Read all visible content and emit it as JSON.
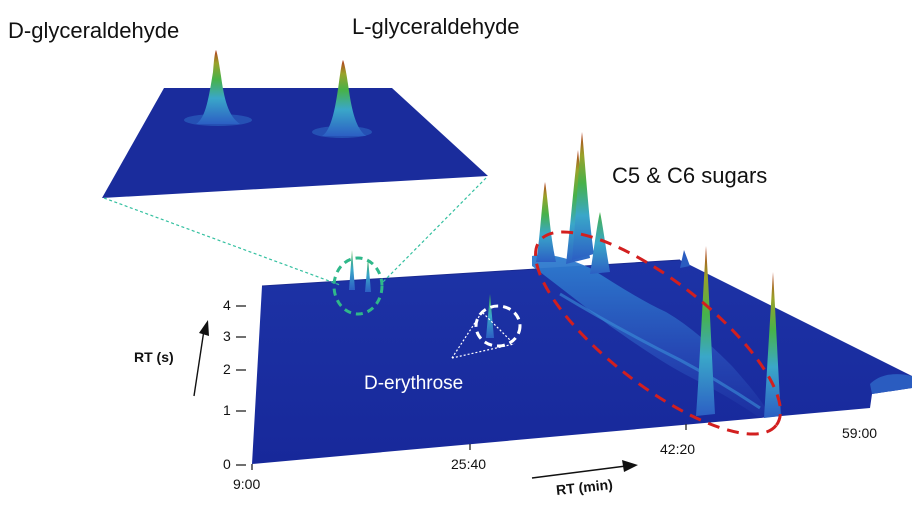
{
  "labels": {
    "d_glyceraldehyde": "D-glyceraldehyde",
    "l_glyceraldehyde": "L-glyceraldehyde",
    "c5_c6_sugars": "C5 & C6 sugars",
    "d_erythrose": "D-erythrose"
  },
  "axes": {
    "x_title": "RT (min)",
    "y_title": "RT (s)",
    "x_ticks": [
      "9:00",
      "25:40",
      "42:20",
      "59:00"
    ],
    "y_ticks": [
      "0",
      "1",
      "2",
      "3",
      "4"
    ]
  },
  "colors": {
    "surface": "#1c2fa0",
    "inset_surface": "#1a2c9c",
    "green_circle": "#2fb88a",
    "red_ellipse": "#d21f1f",
    "white_circle": "#ffffff",
    "peak_low": "#3aa7c9",
    "peak_mid": "#47b24a",
    "peak_high": "#b33a1c"
  }
}
